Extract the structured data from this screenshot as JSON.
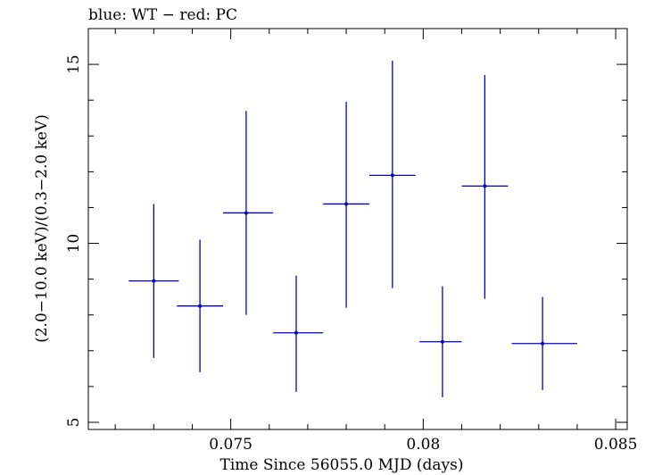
{
  "chart_data": {
    "type": "scatter",
    "title": "blue: WT − red: PC",
    "xlabel": "Time Since 56055.0 MJD (days)",
    "ylabel": "(2.0−10.0 keV)/(0.3−2.0 keV)",
    "xlim": [
      0.0713,
      0.0853
    ],
    "ylim": [
      4.8,
      16.0
    ],
    "x_ticks": [
      0.075,
      0.08,
      0.085
    ],
    "x_tick_labels": [
      "0.075",
      "0.08",
      "0.085"
    ],
    "y_ticks": [
      5,
      10,
      15
    ],
    "y_tick_labels": [
      "5",
      "10",
      "15"
    ],
    "grid": false,
    "series": [
      {
        "color": "#0000cc",
        "points": [
          {
            "x": 0.073,
            "xlo": 0.07235,
            "xhi": 0.07365,
            "y": 8.95,
            "ylo": 6.8,
            "yhi": 11.1
          },
          {
            "x": 0.0742,
            "xlo": 0.0736,
            "xhi": 0.0748,
            "y": 8.25,
            "ylo": 6.4,
            "yhi": 10.1
          },
          {
            "x": 0.0754,
            "xlo": 0.0748,
            "xhi": 0.0761,
            "y": 10.85,
            "ylo": 8.0,
            "yhi": 13.7
          },
          {
            "x": 0.0767,
            "xlo": 0.0761,
            "xhi": 0.0774,
            "y": 7.5,
            "ylo": 5.85,
            "yhi": 9.1
          },
          {
            "x": 0.078,
            "xlo": 0.0774,
            "xhi": 0.0786,
            "y": 11.1,
            "ylo": 8.2,
            "yhi": 13.95
          },
          {
            "x": 0.0792,
            "xlo": 0.0786,
            "xhi": 0.0798,
            "y": 11.9,
            "ylo": 8.75,
            "yhi": 15.1
          },
          {
            "x": 0.0805,
            "xlo": 0.0799,
            "xhi": 0.081,
            "y": 7.25,
            "ylo": 5.7,
            "yhi": 8.8
          },
          {
            "x": 0.0816,
            "xlo": 0.081,
            "xhi": 0.0822,
            "y": 11.6,
            "ylo": 8.45,
            "yhi": 14.7
          },
          {
            "x": 0.0831,
            "xlo": 0.0823,
            "xhi": 0.084,
            "y": 7.2,
            "ylo": 5.9,
            "yhi": 8.5
          }
        ]
      }
    ]
  }
}
